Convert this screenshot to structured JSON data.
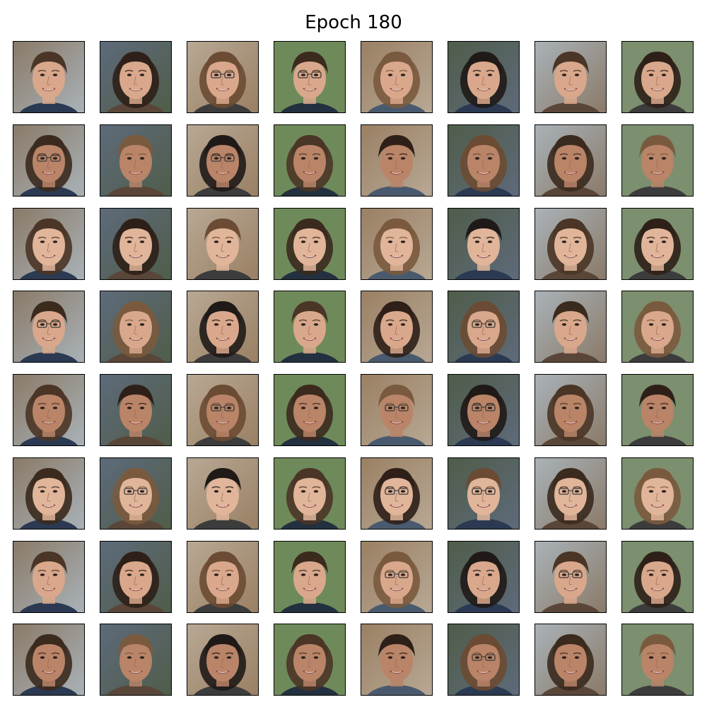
{
  "figure": {
    "title": "Epoch 180"
  },
  "grid": {
    "rows": 8,
    "cols": 8
  },
  "colors": {
    "skin": [
      "#d9a88c",
      "#c99478",
      "#e0b59a",
      "#cf9f84",
      "#b98468",
      "#dcae92"
    ],
    "hair": [
      "#4a3526",
      "#2e2018",
      "#6b4b33",
      "#3b2a1e",
      "#7a5a3e",
      "#1f1a17"
    ],
    "background": [
      "#8a7a68",
      "#6f8a5a",
      "#a9b2b8",
      "#5e6a7a",
      "#9a8064",
      "#7c8f6e",
      "#b8a894",
      "#4f5d4a"
    ],
    "shirt": [
      "#2b3a52",
      "#3c3c3c",
      "#4a5a6e",
      "#5a4638",
      "#23303f"
    ]
  },
  "glasses_tiles": [
    2,
    3,
    8,
    10,
    24,
    29,
    34,
    36,
    37,
    41,
    44,
    45,
    46,
    52,
    54,
    61
  ]
}
